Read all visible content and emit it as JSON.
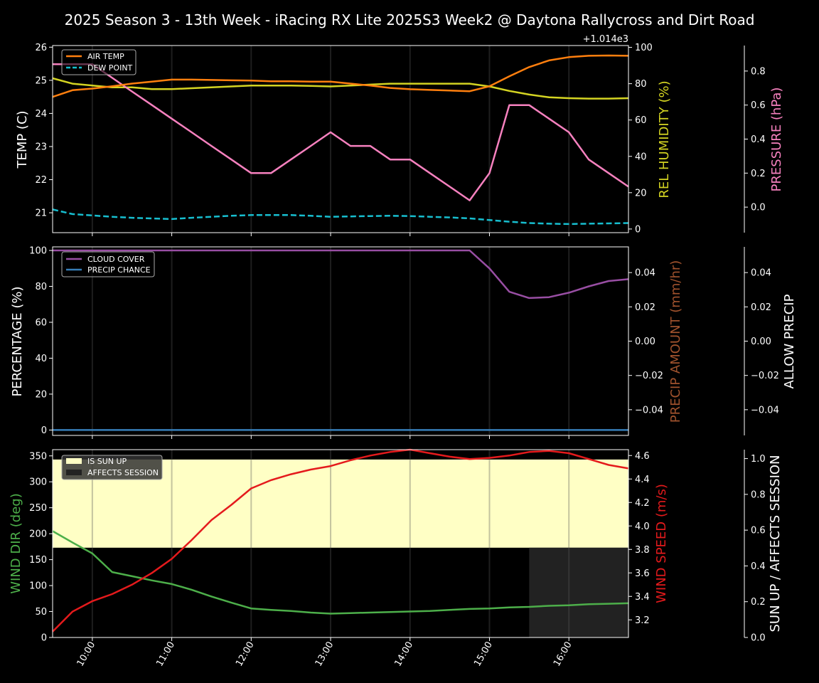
{
  "title": "2025 Season 3 - 13th Week - iRacing RX Lite 2025S3 Week2 @ Daytona Rallycross and Dirt Road",
  "colors": {
    "air_temp": "#ff7f0e",
    "dew_point": "#17becf",
    "humidity": "#d4d422",
    "pressure": "#f781bf",
    "cloud": "#984ea3",
    "precip_chance": "#377eb8",
    "precip_amount": "#a0522d",
    "sun_up": "#ffffc5",
    "affects_session": "#222222",
    "wind_dir": "#4daf4a",
    "wind_speed": "#e41a1c"
  },
  "x_ticks": [
    "10:00",
    "11:00",
    "12:00",
    "13:00",
    "14:00",
    "15:00",
    "16:00"
  ],
  "chart_data": [
    {
      "type": "line",
      "panel": "temperature",
      "x": [
        9.5,
        9.75,
        10.0,
        10.25,
        10.5,
        10.75,
        11.0,
        11.25,
        11.5,
        11.75,
        12.0,
        12.25,
        12.5,
        12.75,
        13.0,
        13.25,
        13.5,
        13.75,
        14.0,
        14.25,
        14.5,
        14.75,
        15.0,
        15.25,
        15.5,
        15.75,
        16.0,
        16.25,
        16.5,
        16.75
      ],
      "ylabel": "TEMP (C)",
      "y2label": "REL HUMIDITY (%)",
      "y3label": "PRESSURE (hPa)",
      "offset_label": "+1.014e3",
      "ylim": [
        20.4,
        26.05
      ],
      "y2lim": [
        -2,
        101
      ],
      "y3lim": [
        -0.15,
        0.95
      ],
      "yticks": [
        "21",
        "22",
        "23",
        "24",
        "25",
        "26"
      ],
      "y2ticks": [
        "0",
        "20",
        "40",
        "60",
        "80",
        "100"
      ],
      "y3ticks": [
        "0.0",
        "0.2",
        "0.4",
        "0.6",
        "0.8"
      ],
      "legend": [
        "AIR TEMP",
        "DEW POINT"
      ],
      "series": [
        {
          "name": "AIR TEMP",
          "axis": "y1",
          "values": [
            24.5,
            24.7,
            24.75,
            24.82,
            24.9,
            24.96,
            25.02,
            25.02,
            25.01,
            25.0,
            24.99,
            24.97,
            24.97,
            24.96,
            24.96,
            24.9,
            24.84,
            24.77,
            24.73,
            24.71,
            24.69,
            24.67,
            24.82,
            25.12,
            25.4,
            25.6,
            25.7,
            25.74,
            25.75,
            25.74
          ]
        },
        {
          "name": "DEW POINT",
          "axis": "y1",
          "values": [
            21.1,
            20.96,
            20.92,
            20.88,
            20.85,
            20.83,
            20.81,
            20.85,
            20.88,
            20.91,
            20.93,
            20.93,
            20.93,
            20.91,
            20.88,
            20.89,
            20.9,
            20.91,
            20.9,
            20.88,
            20.86,
            20.83,
            20.78,
            20.73,
            20.69,
            20.67,
            20.66,
            20.67,
            20.68,
            20.69
          ]
        },
        {
          "axis": "y2",
          "values": [
            83,
            80,
            79,
            78,
            78,
            77,
            77,
            77.5,
            78,
            78.5,
            79,
            79,
            79,
            78.8,
            78.5,
            79,
            79.5,
            80,
            80,
            80,
            80,
            80,
            78.5,
            76,
            74,
            72.5,
            72,
            71.8,
            71.8,
            72
          ]
        },
        {
          "axis": "y3",
          "values": [
            0.84,
            0.84,
            0.84,
            0.76,
            0.68,
            0.6,
            0.52,
            0.44,
            0.36,
            0.28,
            0.2,
            0.2,
            0.28,
            0.36,
            0.44,
            0.36,
            0.36,
            0.28,
            0.28,
            0.2,
            0.12,
            0.04,
            0.2,
            0.6,
            0.6,
            0.52,
            0.44,
            0.28,
            0.2,
            0.12
          ]
        }
      ]
    },
    {
      "type": "line",
      "panel": "precipitation",
      "x": [
        9.5,
        9.75,
        10.0,
        10.25,
        10.5,
        10.75,
        11.0,
        11.25,
        11.5,
        11.75,
        12.0,
        12.25,
        12.5,
        12.75,
        13.0,
        13.25,
        13.5,
        13.75,
        14.0,
        14.25,
        14.5,
        14.75,
        15.0,
        15.25,
        15.5,
        15.75,
        16.0,
        16.25,
        16.5,
        16.75
      ],
      "ylabel": "PERCENTAGE (%)",
      "y2label": "PRECIP AMOUNT (mm/hr)",
      "y3label": "ALLOW PRECIP",
      "ylim": [
        -3,
        102
      ],
      "y2lim": [
        -0.055,
        0.055
      ],
      "y3lim": [
        -0.055,
        0.055
      ],
      "yticks": [
        "0",
        "20",
        "40",
        "60",
        "80",
        "100"
      ],
      "y2ticks": [
        "−0.04",
        "−0.02",
        "0.00",
        "0.02",
        "0.04"
      ],
      "y3ticks": [
        "−0.04",
        "−0.02",
        "0.00",
        "0.02",
        "0.04"
      ],
      "legend": [
        "CLOUD COVER",
        "PRECIP CHANCE"
      ],
      "series": [
        {
          "name": "CLOUD COVER",
          "axis": "y1",
          "values": [
            100,
            100,
            100,
            100,
            100,
            100,
            100,
            100,
            100,
            100,
            100,
            100,
            100,
            100,
            100,
            100,
            100,
            100,
            100,
            100,
            100,
            100,
            90,
            77,
            73.5,
            74,
            76.5,
            80,
            83,
            84
          ]
        },
        {
          "name": "PRECIP CHANCE",
          "axis": "y1",
          "values": [
            0,
            0,
            0,
            0,
            0,
            0,
            0,
            0,
            0,
            0,
            0,
            0,
            0,
            0,
            0,
            0,
            0,
            0,
            0,
            0,
            0,
            0,
            0,
            0,
            0,
            0,
            0,
            0,
            0,
            0
          ]
        }
      ]
    },
    {
      "type": "line",
      "panel": "wind",
      "x": [
        9.5,
        9.75,
        10.0,
        10.25,
        10.5,
        10.75,
        11.0,
        11.25,
        11.5,
        11.75,
        12.0,
        12.25,
        12.5,
        12.75,
        13.0,
        13.25,
        13.5,
        13.75,
        14.0,
        14.25,
        14.5,
        14.75,
        15.0,
        15.25,
        15.5,
        15.75,
        16.0,
        16.25,
        16.5,
        16.75
      ],
      "ylabel": "WIND DIR (deg)",
      "y2label": "WIND SPEED (m/s)",
      "y3label": "SUN UP / AFFECTS SESSION",
      "ylim": [
        0,
        362
      ],
      "y2lim": [
        3.05,
        4.65
      ],
      "y3lim": [
        0,
        1.05
      ],
      "yticks": [
        "0",
        "50",
        "100",
        "150",
        "200",
        "250",
        "300",
        "350"
      ],
      "y2ticks": [
        "3.2",
        "3.4",
        "3.6",
        "3.8",
        "4.0",
        "4.2",
        "4.4",
        "4.6"
      ],
      "y3ticks": [
        "0.0",
        "0.2",
        "0.4",
        "0.6",
        "0.8",
        "1.0"
      ],
      "legend": [
        "IS SUN UP",
        "AFFECTS SESSION"
      ],
      "sun_up": {
        "x_range": [
          9.5,
          16.75
        ],
        "y_range": [
          173,
          343
        ]
      },
      "affects_session": {
        "x_range": [
          15.5,
          16.75
        ],
        "y_range": [
          0,
          173
        ]
      },
      "series": [
        {
          "axis": "y1",
          "values": [
            205,
            183,
            162,
            126,
            118,
            110,
            103,
            92,
            79,
            67,
            56,
            53,
            51,
            48,
            46,
            47,
            48,
            49,
            50,
            51,
            53,
            55,
            56,
            58,
            59,
            61,
            62,
            64,
            65,
            66
          ]
        },
        {
          "axis": "y2",
          "values": [
            3.1,
            3.27,
            3.36,
            3.42,
            3.5,
            3.6,
            3.72,
            3.88,
            4.05,
            4.18,
            4.32,
            4.39,
            4.44,
            4.48,
            4.51,
            4.56,
            4.6,
            4.63,
            4.65,
            4.62,
            4.59,
            4.57,
            4.58,
            4.6,
            4.63,
            4.64,
            4.62,
            4.57,
            4.52,
            4.49
          ]
        }
      ]
    }
  ]
}
